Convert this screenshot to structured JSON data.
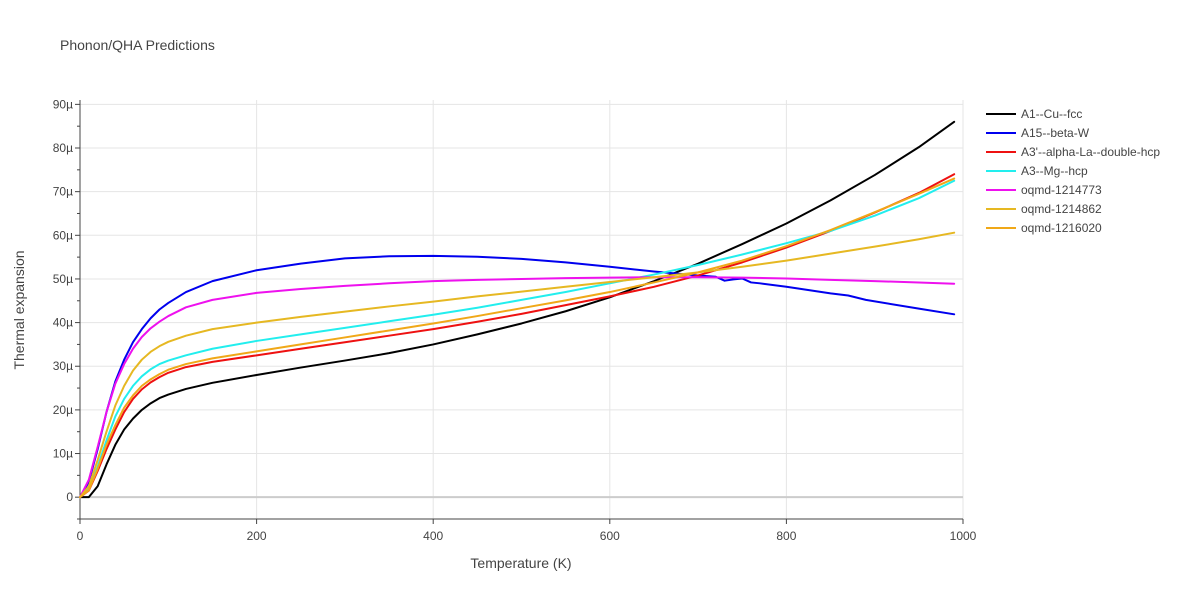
{
  "chart_data": {
    "type": "line",
    "title": "Phonon/QHA Predictions",
    "xlabel": "Temperature (K)",
    "ylabel": "Thermal expansion",
    "xlim": [
      0,
      1000
    ],
    "ylim": [
      -5,
      91
    ],
    "x_ticks": [
      0,
      200,
      400,
      600,
      800,
      1000
    ],
    "x_tick_labels": [
      "0",
      "200",
      "400",
      "600",
      "800",
      "1000"
    ],
    "y_ticks": [
      0,
      10,
      20,
      30,
      40,
      50,
      60,
      70,
      80,
      90
    ],
    "y_tick_labels": [
      "0",
      "10µ",
      "20µ",
      "30µ",
      "40µ",
      "50µ",
      "60µ",
      "70µ",
      "80µ",
      "90µ"
    ],
    "y_unit_note": "values in units of 1e-6 (µ)",
    "grid": true,
    "legend_position": "right",
    "series": [
      {
        "name": "A1--Cu--fcc",
        "color": "#000000",
        "x": [
          0,
          10,
          20,
          30,
          40,
          50,
          60,
          70,
          80,
          90,
          100,
          120,
          150,
          200,
          250,
          300,
          350,
          400,
          450,
          500,
          550,
          600,
          650,
          700,
          750,
          800,
          850,
          900,
          950,
          990
        ],
        "y": [
          0,
          0,
          2.5,
          7.5,
          12,
          15.5,
          18,
          20,
          21.5,
          22.7,
          23.5,
          24.8,
          26.2,
          28,
          29.7,
          31.3,
          33,
          35,
          37.3,
          39.8,
          42.6,
          45.8,
          49.5,
          53.5,
          58,
          62.7,
          68,
          73.8,
          80.2,
          86
        ]
      },
      {
        "name": "A15--beta-W",
        "color": "#0000ee",
        "x": [
          0,
          10,
          20,
          30,
          40,
          50,
          60,
          70,
          80,
          90,
          100,
          120,
          150,
          200,
          250,
          300,
          350,
          400,
          450,
          500,
          550,
          600,
          650,
          700,
          720,
          730,
          740,
          750,
          760,
          770,
          800,
          850,
          870,
          890,
          950,
          990
        ],
        "y": [
          0,
          3.5,
          11,
          19.5,
          26.5,
          31.5,
          35.5,
          38.5,
          41,
          43,
          44.5,
          47,
          49.5,
          52,
          53.5,
          54.7,
          55.2,
          55.3,
          55.1,
          54.6,
          53.8,
          52.8,
          51.7,
          50.8,
          50.5,
          49.6,
          49.9,
          50.1,
          49.2,
          49,
          48.2,
          46.7,
          46.2,
          45.2,
          43.2,
          41.9
        ]
      },
      {
        "name": "A3'--alpha-La--double-hcp",
        "color": "#ee1111",
        "x": [
          0,
          10,
          20,
          30,
          40,
          50,
          60,
          70,
          80,
          90,
          100,
          120,
          150,
          200,
          250,
          300,
          350,
          400,
          450,
          500,
          550,
          600,
          650,
          700,
          750,
          800,
          850,
          900,
          950,
          990
        ],
        "y": [
          0,
          1.5,
          6,
          11,
          15.5,
          19.5,
          22.5,
          24.7,
          26.3,
          27.5,
          28.5,
          29.8,
          31,
          32.5,
          34,
          35.5,
          37,
          38.5,
          40.2,
          42,
          44,
          46,
          48.2,
          50.8,
          53.8,
          57.2,
          61,
          65.2,
          69.7,
          74
        ]
      },
      {
        "name": "A3--Mg--hcp",
        "color": "#22eeee",
        "x": [
          0,
          10,
          20,
          30,
          40,
          50,
          60,
          70,
          80,
          90,
          100,
          120,
          150,
          200,
          250,
          300,
          350,
          400,
          450,
          500,
          550,
          600,
          650,
          700,
          750,
          800,
          850,
          900,
          950,
          990
        ],
        "y": [
          0,
          1.8,
          7,
          13,
          18.5,
          22.5,
          25.5,
          27.7,
          29.3,
          30.5,
          31.3,
          32.5,
          34,
          35.8,
          37.3,
          38.8,
          40.3,
          41.8,
          43.4,
          45.2,
          47,
          49,
          51,
          53.2,
          55.6,
          58.2,
          61,
          64.5,
          68.5,
          72.5
        ]
      },
      {
        "name": "oqmd-1214773",
        "color": "#ee11ee",
        "x": [
          0,
          10,
          20,
          30,
          40,
          50,
          60,
          70,
          80,
          90,
          100,
          120,
          150,
          200,
          250,
          300,
          350,
          400,
          450,
          500,
          550,
          600,
          650,
          700,
          750,
          800,
          850,
          900,
          950,
          990
        ],
        "y": [
          0,
          4,
          11.5,
          19.5,
          26,
          30.5,
          34,
          36.7,
          38.7,
          40.2,
          41.5,
          43.5,
          45.2,
          46.8,
          47.7,
          48.4,
          49,
          49.5,
          49.8,
          50,
          50.2,
          50.3,
          50.4,
          50.4,
          50.3,
          50.1,
          49.8,
          49.5,
          49.2,
          48.9
        ]
      },
      {
        "name": "oqmd-1214862",
        "color": "#e6b822",
        "x": [
          0,
          10,
          20,
          30,
          40,
          50,
          60,
          70,
          80,
          90,
          100,
          120,
          150,
          200,
          250,
          300,
          350,
          400,
          450,
          500,
          550,
          600,
          650,
          700,
          750,
          800,
          850,
          900,
          950,
          990
        ],
        "y": [
          0,
          2.5,
          8.5,
          15,
          21,
          25.5,
          29,
          31.5,
          33.3,
          34.6,
          35.6,
          37,
          38.5,
          40,
          41.3,
          42.5,
          43.7,
          44.8,
          46,
          47.1,
          48.2,
          49.3,
          50.4,
          51.5,
          52.8,
          54.2,
          55.8,
          57.4,
          59.1,
          60.6
        ]
      },
      {
        "name": "oqmd-1216020",
        "color": "#f0a818",
        "x": [
          0,
          10,
          20,
          30,
          40,
          50,
          60,
          70,
          80,
          90,
          100,
          120,
          150,
          200,
          250,
          300,
          350,
          400,
          450,
          500,
          550,
          600,
          650,
          700,
          750,
          800,
          850,
          900,
          950,
          990
        ],
        "y": [
          0,
          1.6,
          6.5,
          12,
          16.5,
          20.5,
          23.3,
          25.5,
          27,
          28.2,
          29.2,
          30.5,
          31.8,
          33.4,
          35,
          36.6,
          38.2,
          39.8,
          41.5,
          43.3,
          45.1,
          47,
          49.2,
          51.5,
          54.2,
          57.5,
          61.2,
          65.3,
          69.5,
          73
        ]
      }
    ]
  }
}
